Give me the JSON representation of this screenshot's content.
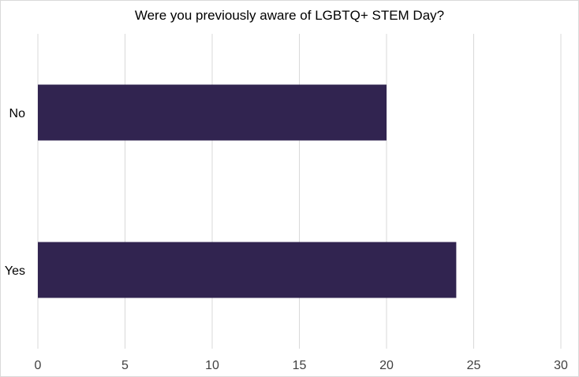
{
  "chart_data": {
    "type": "bar",
    "orientation": "horizontal",
    "title": "Were you previously aware of LGBTQ+ STEM Day?",
    "categories": [
      "No",
      "Yes"
    ],
    "values": [
      20,
      24
    ],
    "xlim": [
      0,
      30
    ],
    "x_ticks": [
      0,
      5,
      10,
      15,
      20,
      25,
      30
    ],
    "xlabel": "",
    "ylabel": "",
    "grid": "vertical",
    "legend": "none",
    "bar_color": "#312450"
  }
}
